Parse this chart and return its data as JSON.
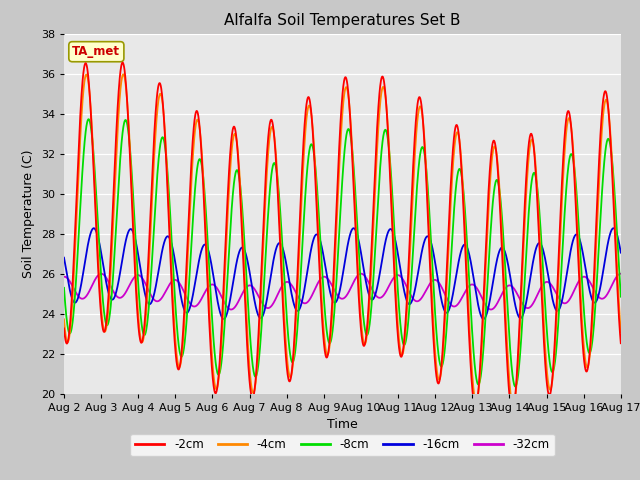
{
  "title": "Alfalfa Soil Temperatures Set B",
  "xlabel": "Time",
  "ylabel": "Soil Temperature (C)",
  "ylim": [
    20,
    38
  ],
  "xlim": [
    0,
    15
  ],
  "annotation": "TA_met",
  "annotation_color": "#cc0000",
  "annotation_bg": "#ffffcc",
  "series_colors": {
    "-2cm": "#ff0000",
    "-4cm": "#ff8800",
    "-8cm": "#00dd00",
    "-16cm": "#0000dd",
    "-32cm": "#cc00cc"
  },
  "fig_facecolor": "#c8c8c8",
  "ax_facecolor": "#e8e8e8",
  "grid_color": "#ffffff",
  "x_ticks": [
    0,
    1,
    2,
    3,
    4,
    5,
    6,
    7,
    8,
    9,
    10,
    11,
    12,
    13,
    14,
    15
  ],
  "x_tick_labels": [
    "Aug 2",
    "Aug 3",
    "Aug 4",
    "Aug 5",
    "Aug 6",
    "Aug 7",
    "Aug 8",
    "Aug 9",
    "Aug 10",
    "Aug 11",
    "Aug 12",
    "Aug 13",
    "Aug 14",
    "Aug 15",
    "Aug 16",
    "Aug 17"
  ],
  "y_ticks": [
    20,
    22,
    24,
    26,
    28,
    30,
    32,
    34,
    36,
    38
  ]
}
